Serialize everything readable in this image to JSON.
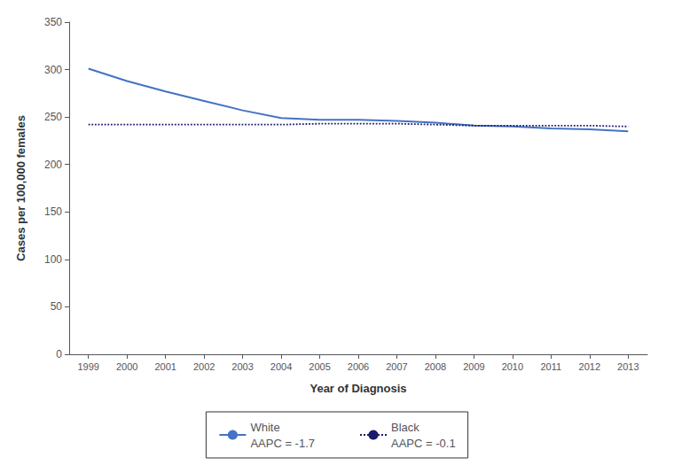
{
  "chart_data": {
    "type": "line",
    "x": [
      1999,
      2000,
      2001,
      2002,
      2003,
      2004,
      2005,
      2006,
      2007,
      2008,
      2009,
      2010,
      2011,
      2012,
      2013
    ],
    "series": [
      {
        "name": "White",
        "color": "#4472C4",
        "line_style": "solid",
        "values": [
          301,
          288,
          277,
          267,
          257,
          249,
          247,
          247,
          246,
          244,
          241,
          240,
          238,
          237,
          235
        ]
      },
      {
        "name": "Black",
        "color": "#1a1a6e",
        "line_style": "dotted",
        "values": [
          242,
          242,
          242,
          242,
          242,
          242,
          243,
          243,
          243,
          242,
          241,
          241,
          241,
          241,
          240
        ]
      }
    ],
    "annotations": [
      "AAPC = -1.7",
      "AAPC = -0.1"
    ],
    "xlabel": "Year of Diagnosis",
    "ylabel": "Cases per 100,000 females",
    "xlim": [
      1998.5,
      2013.5
    ],
    "xticks": [
      1999,
      2000,
      2001,
      2002,
      2003,
      2004,
      2005,
      2006,
      2007,
      2008,
      2009,
      2010,
      2011,
      2012,
      2013
    ],
    "ylim": [
      0,
      350
    ],
    "yticks": [
      0,
      50,
      100,
      150,
      200,
      250,
      300,
      350
    ],
    "grid": false,
    "legend": "bottom"
  }
}
